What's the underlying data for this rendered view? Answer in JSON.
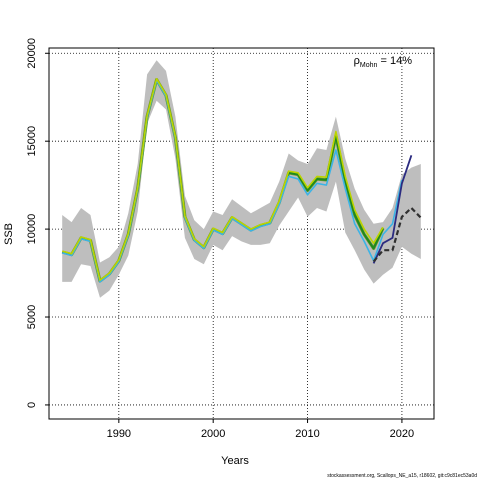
{
  "chart_data": {
    "type": "line",
    "title": "",
    "xlabel": "Years",
    "ylabel": "SSB",
    "xlim": [
      1982.6,
      2023.4
    ],
    "ylim": [
      -800,
      20300
    ],
    "x_ticks": [
      1990,
      2000,
      2010,
      2020
    ],
    "y_ticks": [
      0,
      5000,
      10000,
      15000,
      20000
    ],
    "grid": true,
    "annotation": {
      "rho_symbol": "ρ",
      "rho_subscript": "Mohn",
      "rho_value": " = 14%"
    },
    "footer": "stockassessment.org, Scallops_NE_a15, r18602, git:c9c81ec53a0d",
    "colors": {
      "band": "#bebebe",
      "base": "#6e9b2e",
      "peel_1": "#1f8a1f",
      "peel_2": "#3bb3e6",
      "peel_3": "#bcd400",
      "peel_4": "#2b2b80",
      "peel_5": "#303030"
    },
    "band": {
      "x": [
        1984,
        1985,
        1986,
        1987,
        1988,
        1989,
        1990,
        1991,
        1992,
        1993,
        1994,
        1995,
        1996,
        1997,
        1998,
        1999,
        2000,
        2001,
        2002,
        2003,
        2004,
        2005,
        2006,
        2007,
        2008,
        2009,
        2010,
        2011,
        2012,
        2013,
        2014,
        2015,
        2016,
        2017,
        2018,
        2019,
        2020,
        2021,
        2022
      ],
      "lower": [
        7000,
        7000,
        8000,
        7900,
        6100,
        6500,
        7400,
        8500,
        11000,
        16000,
        17300,
        16800,
        14000,
        9500,
        8300,
        8000,
        9100,
        8800,
        9600,
        9300,
        9100,
        9100,
        9200,
        10200,
        11000,
        11800,
        10700,
        11200,
        11000,
        12700,
        9800,
        8800,
        7700,
        6900,
        7400,
        7800,
        9000,
        8600,
        8300
      ],
      "upper": [
        10800,
        10400,
        11200,
        10800,
        8100,
        8400,
        9000,
        10900,
        13700,
        18800,
        19600,
        19000,
        16400,
        11900,
        10500,
        10000,
        11000,
        10800,
        11700,
        11300,
        10900,
        11200,
        11500,
        12700,
        14300,
        13900,
        13700,
        14600,
        14500,
        16400,
        14000,
        12300,
        11100,
        10300,
        10400,
        11200,
        13100,
        13500,
        13700
      ]
    },
    "series": [
      {
        "x": [
          1984,
          1985,
          1986,
          1987,
          1988,
          1989,
          1990,
          1991,
          1992,
          1993,
          1994,
          1995,
          1996,
          1997,
          1998,
          1999,
          2000,
          2001,
          2002,
          2003,
          2004,
          2005,
          2006,
          2007,
          2008,
          2009,
          2010,
          2011,
          2012,
          2013,
          2014,
          2015,
          2016,
          2017,
          2018
        ],
        "values": [
          8700,
          8550,
          9500,
          9350,
          7050,
          7450,
          8200,
          9700,
          12300,
          16400,
          18500,
          17600,
          15200,
          10700,
          9400,
          8950,
          10000,
          9750,
          10650,
          10300,
          9950,
          10200,
          10350,
          11500,
          13200,
          13100,
          12200,
          12850,
          12800,
          15300,
          12700,
          10800,
          9700,
          8900,
          10050
        ]
      },
      {
        "x": [
          1984,
          1985,
          1986,
          1987,
          1988,
          1989,
          1990,
          1991,
          1992,
          1993,
          1994,
          1995,
          1996,
          1997,
          1998,
          1999,
          2000,
          2001,
          2002,
          2003,
          2004,
          2005,
          2006,
          2007,
          2008,
          2009,
          2010,
          2011,
          2012,
          2013,
          2014,
          2015,
          2016,
          2017,
          2018
        ],
        "values": [
          8700,
          8550,
          9500,
          9350,
          7050,
          7450,
          8200,
          9700,
          12300,
          16400,
          18500,
          17600,
          15200,
          10700,
          9400,
          8950,
          10000,
          9750,
          10650,
          10300,
          9950,
          10200,
          10350,
          11500,
          13200,
          13100,
          12200,
          12850,
          12800,
          15300,
          12700,
          10800,
          9700,
          8900,
          10050
        ]
      },
      {
        "x": [
          1984,
          1985,
          1986,
          1987,
          1988,
          1989,
          1990,
          1991,
          1992,
          1993,
          1994,
          1995,
          1996,
          1997,
          1998,
          1999,
          2000,
          2001,
          2002,
          2003,
          2004,
          2005,
          2006,
          2007,
          2008,
          2009,
          2010,
          2011,
          2012,
          2013,
          2014,
          2015,
          2016,
          2017,
          2018,
          2019,
          2020
        ],
        "values": [
          8650,
          8500,
          9450,
          9300,
          7000,
          7400,
          8150,
          9650,
          12250,
          16350,
          18450,
          17550,
          15150,
          10650,
          9350,
          8900,
          9950,
          9700,
          10600,
          10250,
          9900,
          10150,
          10300,
          11400,
          13000,
          12850,
          11950,
          12600,
          12500,
          14500,
          12300,
          10300,
          9300,
          8200,
          9700,
          10300,
          12800
        ]
      },
      {
        "x": [
          1984,
          1985,
          1986,
          1987,
          1988,
          1989,
          1990,
          1991,
          1992,
          1993,
          1994,
          1995,
          1996,
          1997,
          1998,
          1999,
          2000,
          2001,
          2002,
          2003,
          2004,
          2005,
          2006,
          2007,
          2008,
          2009,
          2010,
          2011,
          2012,
          2013,
          2014,
          2015,
          2016,
          2017,
          2018
        ],
        "values": [
          8750,
          8600,
          9550,
          9400,
          7100,
          7500,
          8250,
          9750,
          12350,
          16450,
          18550,
          17650,
          15250,
          10750,
          9450,
          9000,
          10050,
          9800,
          10700,
          10350,
          10000,
          10250,
          10400,
          11600,
          13300,
          13200,
          12350,
          13000,
          12950,
          15550,
          13000,
          11100,
          10000,
          9200,
          10100
        ]
      },
      {
        "x": [
          2017,
          2018,
          2019,
          2020,
          2021
        ],
        "values": [
          8050,
          9200,
          9500,
          12600,
          14200
        ]
      },
      {
        "x": [
          2017,
          2018,
          2019,
          2020,
          2021,
          2022
        ],
        "values": [
          8150,
          8800,
          8800,
          10700,
          11200,
          10650
        ]
      }
    ]
  }
}
